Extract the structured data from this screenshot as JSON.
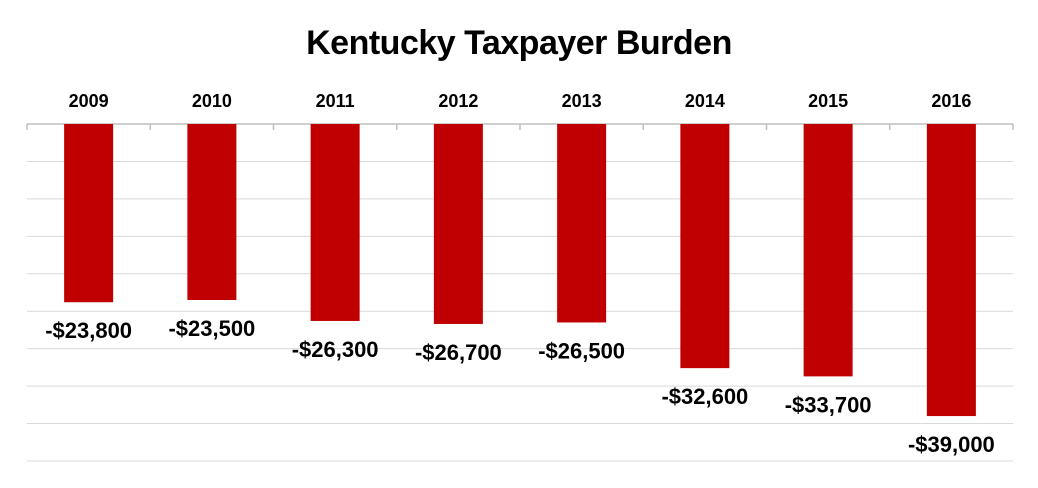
{
  "chart_data": {
    "type": "bar",
    "title": "Kentucky Taxpayer Burden",
    "categories": [
      "2009",
      "2010",
      "2011",
      "2012",
      "2013",
      "2014",
      "2015",
      "2016"
    ],
    "values": [
      -23800,
      -23500,
      -26300,
      -26700,
      -26500,
      -32600,
      -33700,
      -39000
    ],
    "value_labels": [
      "-$23,800",
      "-$23,500",
      "-$26,300",
      "-$26,700",
      "-$26,500",
      "-$32,600",
      "-$33,700",
      "-$39,000"
    ],
    "ylim": [
      -45000,
      0
    ],
    "grid": true,
    "bar_color": "#c00000",
    "category_axis_position": "top"
  }
}
